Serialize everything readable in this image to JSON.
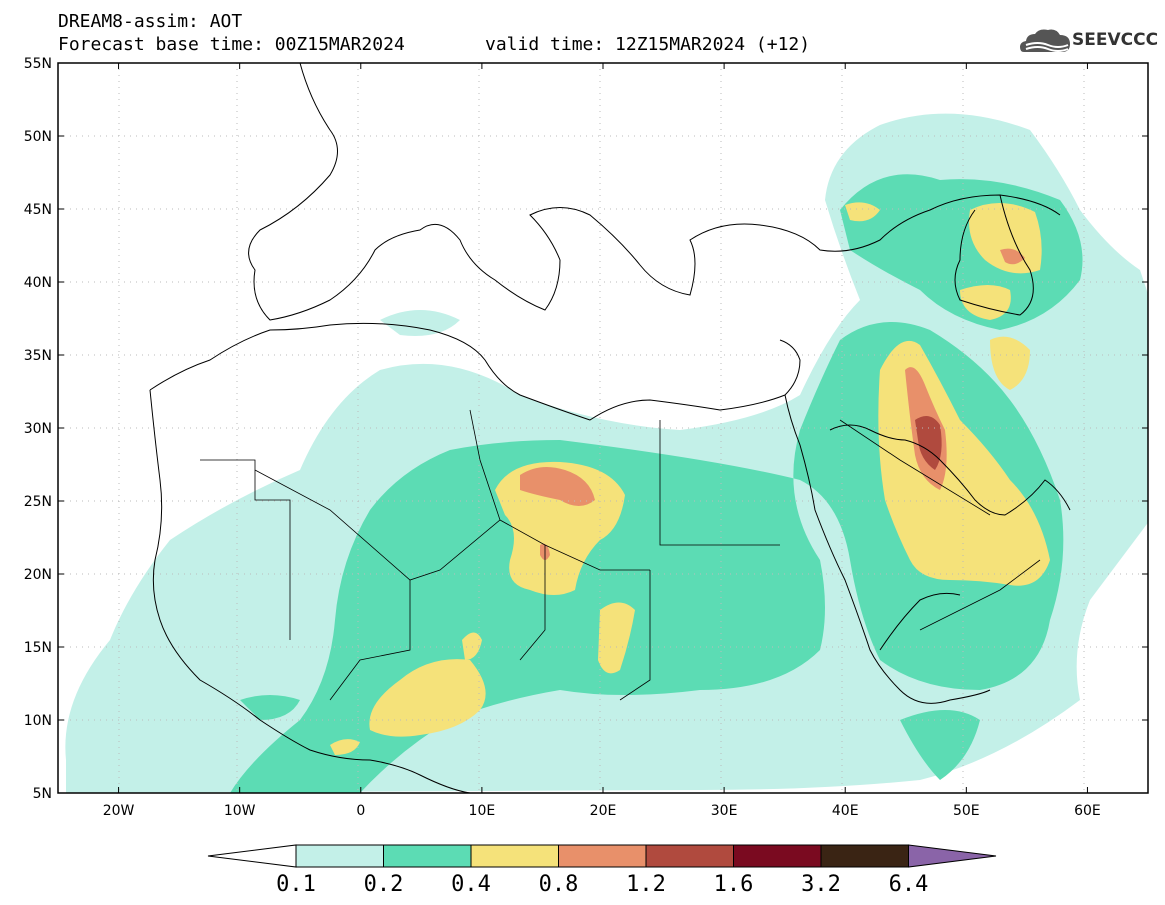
{
  "header": {
    "title": "DREAM8-assim: AOT",
    "base_time": "Forecast base time: 00Z15MAR2024",
    "valid_time": "valid time: 12Z15MAR2024 (+12)"
  },
  "logo": {
    "text": "SEEVCCC",
    "icon": "cloud-logo-icon"
  },
  "map": {
    "lat_labels": [
      "55N",
      "50N",
      "45N",
      "40N",
      "35N",
      "30N",
      "25N",
      "20N",
      "15N",
      "10N",
      "5N"
    ],
    "lon_labels": [
      "20W",
      "10W",
      "0",
      "10E",
      "20E",
      "30E",
      "40E",
      "50E",
      "60E"
    ],
    "lat_range": [
      5,
      55
    ],
    "lon_range": [
      -25,
      65
    ]
  },
  "colorbar": {
    "levels": [
      "0.1",
      "0.2",
      "0.4",
      "0.8",
      "1.2",
      "1.6",
      "3.2",
      "6.4"
    ],
    "colors": [
      "#c3f0e8",
      "#5cdcb4",
      "#f5e27a",
      "#e8906a",
      "#b04a3e",
      "#7a0a20",
      "#3a2414",
      "#8a64a8"
    ],
    "below_color": "#ffffff"
  }
}
